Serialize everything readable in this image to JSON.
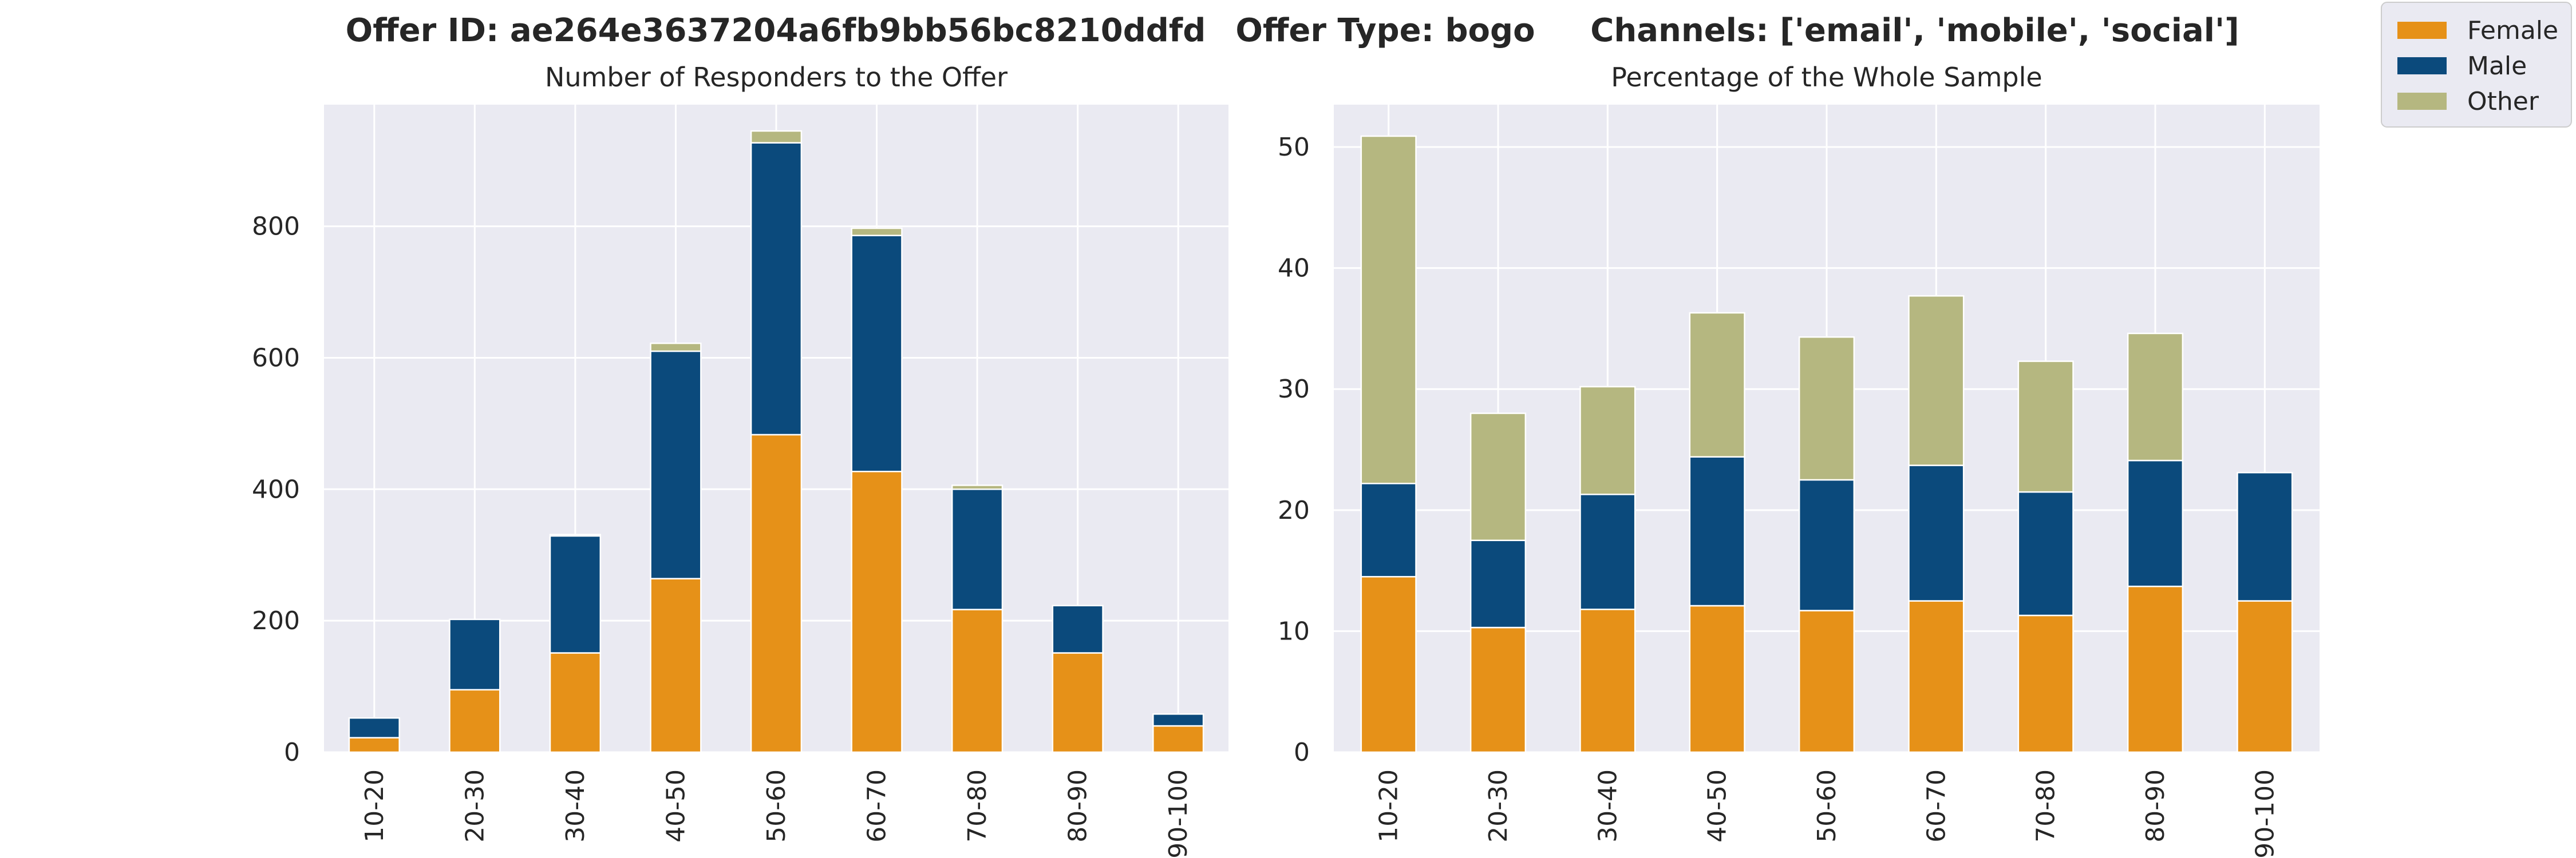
{
  "figure_title": {
    "offer_id": "Offer ID: ae264e3637204a6fb9bb56bc8210ddfd",
    "offer_type": "Offer Type: bogo",
    "channels": "Channels: ['email', 'mobile', 'social']"
  },
  "legend": {
    "items": [
      {
        "label": "Female",
        "color": "#e69118"
      },
      {
        "label": "Male",
        "color": "#0b4a7c"
      },
      {
        "label": "Other",
        "color": "#b5b780"
      }
    ]
  },
  "chart_data": [
    {
      "type": "bar",
      "stacked": true,
      "title": "Number of Responders to the Offer",
      "xlabel": "",
      "ylabel": "",
      "categories": [
        "10-20",
        "20-30",
        "30-40",
        "40-50",
        "50-60",
        "60-70",
        "70-80",
        "80-90",
        "90-100"
      ],
      "series": [
        {
          "name": "Female",
          "color": "#e69118",
          "values": [
            22,
            95,
            151,
            264,
            483,
            427,
            217,
            151,
            40
          ]
        },
        {
          "name": "Male",
          "color": "#0b4a7c",
          "values": [
            30,
            107,
            178,
            346,
            444,
            359,
            183,
            72,
            18
          ]
        },
        {
          "name": "Other",
          "color": "#b5b780",
          "values": [
            0,
            0,
            2,
            12,
            18,
            11,
            6,
            0,
            0
          ]
        }
      ],
      "ylim": [
        0,
        985
      ],
      "yticks": [
        0,
        200,
        400,
        600,
        800
      ],
      "grid": true
    },
    {
      "type": "bar",
      "stacked": true,
      "title": "Percentage of the Whole Sample",
      "xlabel": "",
      "ylabel": "",
      "categories": [
        "10-20",
        "20-30",
        "30-40",
        "40-50",
        "50-60",
        "60-70",
        "70-80",
        "80-90",
        "90-100"
      ],
      "series": [
        {
          "name": "Female",
          "color": "#e69118",
          "values": [
            14.5,
            10.3,
            11.8,
            12.1,
            11.7,
            12.5,
            11.3,
            13.7,
            12.5
          ]
        },
        {
          "name": "Male",
          "color": "#0b4a7c",
          "values": [
            7.7,
            7.2,
            9.5,
            12.3,
            10.8,
            11.2,
            10.2,
            10.4,
            10.6
          ]
        },
        {
          "name": "Other",
          "color": "#b5b780",
          "values": [
            28.7,
            10.5,
            8.9,
            11.9,
            11.8,
            14.0,
            10.8,
            10.5,
            0
          ]
        }
      ],
      "ylim": [
        0,
        53.5
      ],
      "yticks": [
        0,
        10,
        20,
        30,
        40,
        50
      ],
      "grid": true
    }
  ]
}
